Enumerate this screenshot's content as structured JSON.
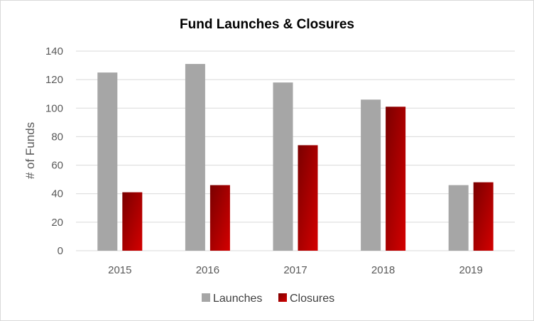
{
  "chart_data": {
    "type": "bar",
    "title": "Fund Launches & Closures",
    "xlabel": "",
    "ylabel": "# of Funds",
    "categories": [
      "2015",
      "2016",
      "2017",
      "2018",
      "2019"
    ],
    "series": [
      {
        "name": "Launches",
        "values": [
          125,
          131,
          118,
          106,
          46
        ],
        "color": "#a6a6a6"
      },
      {
        "name": "Closures",
        "values": [
          41,
          46,
          74,
          101,
          48
        ],
        "color": "#c00000"
      }
    ],
    "ylim": [
      0,
      140
    ],
    "yticks": [
      "0",
      "20",
      "40",
      "60",
      "80",
      "100",
      "120",
      "140"
    ],
    "grid": true,
    "legend_position": "bottom"
  }
}
